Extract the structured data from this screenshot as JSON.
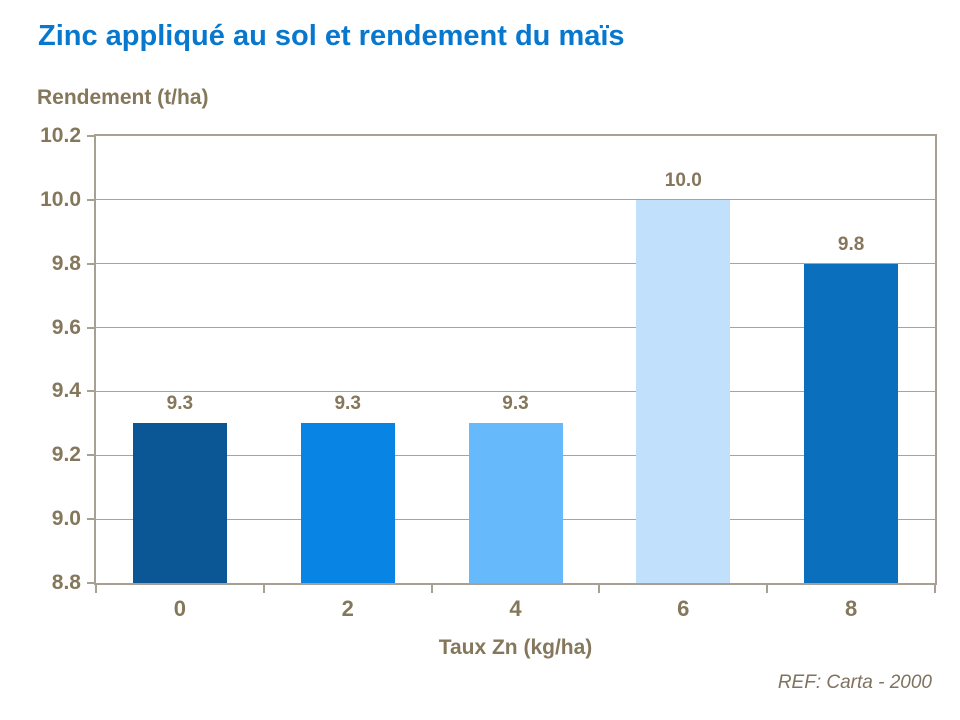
{
  "page": {
    "title": "Zinc appliqué au sol et rendement du maïs",
    "reference": "REF: Carta - 2000"
  },
  "colors": {
    "title_text": "#0878cf",
    "axis_text": "#85775c",
    "reference_text": "#7f7260",
    "plot_border": "#a8a092",
    "gridline": "#aba395",
    "background": "#ffffff"
  },
  "chart_data": {
    "type": "bar",
    "title": "Zinc appliqué au sol et rendement du maïs",
    "categories": [
      "0",
      "2",
      "4",
      "6",
      "8"
    ],
    "values": [
      9.3,
      9.3,
      9.3,
      10.0,
      9.8
    ],
    "bar_labels": [
      "9.3",
      "9.3",
      "9.3",
      "10.0",
      "9.8"
    ],
    "bar_colors": [
      "#0b5695",
      "#0884e4",
      "#66bafb",
      "#c1e0fb",
      "#0a6fbd"
    ],
    "xlabel": "Taux Zn (kg/ha)",
    "ylabel": "Rendement (t/ha)",
    "ylim": [
      8.8,
      10.2
    ],
    "ytick_step": 0.2,
    "ytick_labels": [
      "8.8",
      "9.0",
      "9.2",
      "9.4",
      "9.6",
      "9.8",
      "10.0",
      "10.2"
    ],
    "grid": true,
    "legend": "none",
    "annotation": "REF: Carta - 2000"
  }
}
